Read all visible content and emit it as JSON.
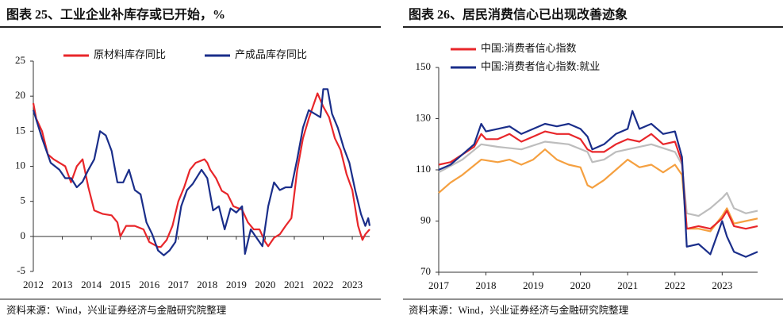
{
  "chart_data": [
    {
      "type": "line",
      "title": "图表 25、工业企业补库存或已开始，%",
      "source": "资料来源：Wind，兴业证券经济与金融研究院整理",
      "xlim": [
        2012,
        2023.6
      ],
      "xticks": [
        2012,
        2013,
        2014,
        2015,
        2016,
        2017,
        2018,
        2019,
        2020,
        2021,
        2022,
        2023
      ],
      "ylim": [
        -5,
        25
      ],
      "yticks": [
        -5,
        0,
        5,
        10,
        15,
        20,
        25
      ],
      "legend": "top",
      "series": [
        {
          "name": "原材料库存同比",
          "color": "#e8262a",
          "x": [
            2012.0,
            2012.1,
            2012.3,
            2012.5,
            2012.7,
            2012.9,
            2013.1,
            2013.3,
            2013.5,
            2013.7,
            2013.9,
            2014.1,
            2014.4,
            2014.7,
            2014.9,
            2015.0,
            2015.2,
            2015.5,
            2015.8,
            2016.0,
            2016.3,
            2016.4,
            2016.6,
            2016.8,
            2017.0,
            2017.2,
            2017.4,
            2017.6,
            2017.9,
            2018.0,
            2018.1,
            2018.3,
            2018.5,
            2018.7,
            2018.9,
            2019.2,
            2019.4,
            2019.6,
            2019.8,
            2020.0,
            2020.1,
            2020.3,
            2020.5,
            2020.7,
            2020.9,
            2021.1,
            2021.3,
            2021.5,
            2021.8,
            2022.0,
            2022.2,
            2022.4,
            2022.6,
            2022.8,
            2023.0,
            2023.2,
            2023.35,
            2023.45,
            2023.6
          ],
          "values": [
            19,
            16.8,
            15,
            11.7,
            11,
            10.5,
            10,
            7.7,
            10,
            11,
            7,
            3.7,
            3.2,
            3,
            2,
            0,
            1.5,
            1.5,
            1,
            -0.8,
            -1.5,
            -1.5,
            -0.5,
            1.5,
            5,
            7,
            9.5,
            10.5,
            11,
            10.5,
            9.5,
            8.3,
            6.5,
            6,
            4.3,
            3.8,
            2,
            1,
            1,
            -0.8,
            -1.4,
            -0.2,
            0.3,
            1.5,
            2.6,
            9.4,
            14,
            16.8,
            20.4,
            18.5,
            17,
            14,
            12.3,
            8.9,
            6.6,
            1.5,
            -0.5,
            0.3,
            1
          ]
        },
        {
          "name": "产成品库存同比",
          "color": "#1a2e8a",
          "x": [
            2012.0,
            2012.3,
            2012.6,
            2012.9,
            2013.1,
            2013.3,
            2013.5,
            2013.7,
            2013.9,
            2014.1,
            2014.3,
            2014.5,
            2014.7,
            2014.9,
            2015.1,
            2015.3,
            2015.5,
            2015.7,
            2015.9,
            2016.1,
            2016.3,
            2016.5,
            2016.7,
            2016.9,
            2017.1,
            2017.3,
            2017.5,
            2017.8,
            2018.0,
            2018.2,
            2018.4,
            2018.6,
            2018.8,
            2019.0,
            2019.2,
            2019.3,
            2019.5,
            2019.7,
            2019.9,
            2020.1,
            2020.3,
            2020.5,
            2020.7,
            2020.9,
            2021.1,
            2021.3,
            2021.5,
            2021.7,
            2021.9,
            2022.0,
            2022.15,
            2022.3,
            2022.5,
            2022.7,
            2022.9,
            2023.1,
            2023.3,
            2023.45,
            2023.55,
            2023.6
          ],
          "values": [
            18,
            14,
            10.5,
            9.5,
            8.3,
            8.3,
            7,
            7.8,
            9.5,
            11,
            15,
            14.4,
            12.2,
            7.7,
            7.7,
            9.5,
            6.6,
            6,
            2,
            0.3,
            -2,
            -2.7,
            -2,
            -0.8,
            4.3,
            6.6,
            7.5,
            9.5,
            8.3,
            3.7,
            4.3,
            1,
            4,
            3.4,
            4.3,
            -2.5,
            1,
            -0.2,
            -1.4,
            4.3,
            7.7,
            6.6,
            7,
            7,
            11,
            15.5,
            18,
            17.5,
            17,
            21,
            21,
            17.5,
            15.5,
            12.7,
            10.5,
            6.6,
            3.2,
            1.5,
            2.6,
            1.5
          ]
        }
      ]
    },
    {
      "type": "line",
      "title": "图表 26、居民消费信心已出现改善迹象",
      "source": "资料来源：Wind，兴业证券经济与金融研究院整理",
      "xlim": [
        2017,
        2023.75
      ],
      "xticks": [
        2017,
        2018,
        2019,
        2020,
        2021,
        2022,
        2023
      ],
      "ylim": [
        70,
        150
      ],
      "yticks": [
        70,
        90,
        110,
        130,
        150
      ],
      "legend": "top-left",
      "series": [
        {
          "color": "#bdbdbd",
          "x": [
            2017.0,
            2017.5,
            2017.9,
            2018.25,
            2018.75,
            2019.25,
            2019.75,
            2020.15,
            2020.25,
            2020.5,
            2020.75,
            2021.0,
            2021.5,
            2022.0,
            2022.15,
            2022.25,
            2022.5,
            2022.75,
            2023.0,
            2023.1,
            2023.25,
            2023.5,
            2023.75
          ],
          "values": [
            109,
            114,
            120,
            119,
            118,
            121,
            120,
            117,
            113,
            114,
            117,
            118,
            120,
            117,
            112,
            93,
            92,
            95,
            99,
            101,
            95,
            93,
            94
          ]
        },
        {
          "color": "#f5a040",
          "x": [
            2017.0,
            2017.25,
            2017.5,
            2017.9,
            2018.25,
            2018.5,
            2018.75,
            2019.0,
            2019.25,
            2019.5,
            2019.75,
            2020.0,
            2020.15,
            2020.25,
            2020.5,
            2020.75,
            2021.0,
            2021.25,
            2021.5,
            2021.75,
            2022.0,
            2022.15,
            2022.25,
            2022.5,
            2022.75,
            2023.0,
            2023.1,
            2023.25,
            2023.5,
            2023.75
          ],
          "values": [
            101,
            105,
            108,
            114,
            113,
            114,
            112,
            114,
            118,
            114,
            112,
            111,
            104,
            103,
            106,
            110,
            114,
            111,
            112,
            109,
            112,
            108,
            87,
            87,
            86,
            92,
            95,
            89,
            90,
            91
          ]
        },
        {
          "name": "中国:消费者信心指数",
          "color": "#e8262a",
          "x": [
            2017.0,
            2017.25,
            2017.5,
            2017.75,
            2017.9,
            2018.0,
            2018.25,
            2018.5,
            2018.75,
            2019.0,
            2019.25,
            2019.5,
            2019.75,
            2020.0,
            2020.15,
            2020.25,
            2020.5,
            2020.75,
            2021.0,
            2021.25,
            2021.5,
            2021.75,
            2022.0,
            2022.15,
            2022.25,
            2022.5,
            2022.75,
            2023.0,
            2023.1,
            2023.25,
            2023.5,
            2023.75
          ],
          "values": [
            112,
            113,
            116,
            119,
            124,
            122,
            122,
            124,
            121,
            123,
            125,
            124,
            124,
            122,
            118,
            117,
            117,
            120,
            122,
            121,
            124,
            120,
            121,
            113,
            87,
            88,
            87,
            91,
            94,
            88,
            87,
            88
          ]
        },
        {
          "name": "中国:消费者信心指数:就业",
          "color": "#1a2e8a",
          "x": [
            2017.0,
            2017.25,
            2017.5,
            2017.75,
            2017.9,
            2018.0,
            2018.25,
            2018.5,
            2018.75,
            2019.0,
            2019.25,
            2019.5,
            2019.75,
            2020.0,
            2020.15,
            2020.25,
            2020.5,
            2020.75,
            2021.0,
            2021.1,
            2021.25,
            2021.5,
            2021.75,
            2022.0,
            2022.15,
            2022.25,
            2022.5,
            2022.75,
            2023.0,
            2023.1,
            2023.25,
            2023.5,
            2023.75
          ],
          "values": [
            110,
            112,
            116,
            120,
            128,
            125,
            126,
            127,
            124,
            126,
            128,
            127,
            128,
            126,
            123,
            118,
            120,
            124,
            126,
            133,
            126,
            128,
            124,
            125,
            115,
            80,
            81,
            77,
            90,
            84,
            78,
            76,
            78
          ]
        }
      ]
    }
  ]
}
